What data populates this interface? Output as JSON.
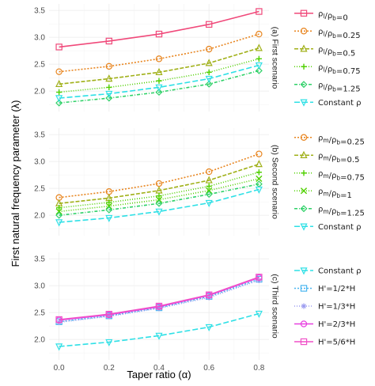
{
  "chart_data": {
    "type": "line",
    "xlabel": "Taper ratio (α)",
    "ylabel": "First natural frequency parameter (λ)",
    "x": [
      0.0,
      0.2,
      0.4,
      0.6,
      0.8
    ],
    "x_ticks": [
      "0.0",
      "0.2",
      "0.4",
      "0.6",
      "0.8"
    ],
    "xlim": [
      -0.04,
      0.84
    ],
    "ylim": [
      1.62,
      3.62
    ],
    "y_ticks": [
      "2.0",
      "2.5",
      "3.0",
      "3.5"
    ],
    "y_tick_values": [
      2.0,
      2.5,
      3.0,
      3.5
    ],
    "grid": true,
    "legend_position": "right",
    "colors": {
      "pink": "#f0497a",
      "orange": "#e8851f",
      "olive": "#a0b018",
      "green": "#50d000",
      "ltgreen": "#2fd168",
      "cyan": "#2fe0e6",
      "blue": "#4ab6f0",
      "lavender": "#9a9af0",
      "magenta": "#e740e0",
      "hotpink": "#f050c8"
    },
    "panels": [
      {
        "strip": "(a) First scenario",
        "series": [
          {
            "name": "ρ_l/ρ_b=0",
            "label_main": "ρ",
            "label_sub1": "l",
            "label_mid": "/ρ",
            "label_sub2": "b",
            "label_end": "=0",
            "values": [
              2.82,
              2.93,
              3.06,
              3.24,
              3.48
            ],
            "color": "pink",
            "dash": "",
            "marker": "square"
          },
          {
            "name": "ρ_l/ρ_b=0.25",
            "label_main": "ρ",
            "label_sub1": "l",
            "label_mid": "/ρ",
            "label_sub2": "b",
            "label_end": "=0.25",
            "values": [
              2.36,
              2.46,
              2.6,
              2.78,
              3.06
            ],
            "color": "orange",
            "dash": "2,2",
            "marker": "circle"
          },
          {
            "name": "ρ_l/ρ_b=0.5",
            "label_main": "ρ",
            "label_sub1": "l",
            "label_mid": "/ρ",
            "label_sub2": "b",
            "label_end": "=0.5",
            "values": [
              2.13,
              2.23,
              2.35,
              2.52,
              2.8
            ],
            "color": "olive",
            "dash": "5,2",
            "marker": "triangle"
          },
          {
            "name": "ρ_l/ρ_b=0.75",
            "label_main": "ρ",
            "label_sub1": "l",
            "label_mid": "/ρ",
            "label_sub2": "b",
            "label_end": "=0.75",
            "values": [
              1.98,
              2.07,
              2.19,
              2.35,
              2.6
            ],
            "color": "green",
            "dash": "1,2",
            "marker": "plus"
          },
          {
            "name": "ρ_l/ρ_b=1.25",
            "label_main": "ρ",
            "label_sub1": "l",
            "label_mid": "/ρ",
            "label_sub2": "b",
            "label_end": "=1.25",
            "values": [
              1.78,
              1.87,
              1.98,
              2.13,
              2.38
            ],
            "color": "ltgreen",
            "dash": "4,2,1,2",
            "marker": "diamond"
          },
          {
            "name": "Constant ρ",
            "label_main": "Constant ρ",
            "label_sub1": "",
            "label_mid": "",
            "label_sub2": "",
            "label_end": "",
            "values": [
              1.87,
              1.95,
              2.07,
              2.23,
              2.48
            ],
            "color": "cyan",
            "dash": "7,3",
            "marker": "invtriangle"
          }
        ]
      },
      {
        "strip": "(b) Second scenario",
        "series": [
          {
            "name": "ρ_m/ρ_b=0.25",
            "label_main": "ρ",
            "label_sub1": "m",
            "label_mid": "/ρ",
            "label_sub2": "b",
            "label_end": "=0.25",
            "values": [
              2.33,
              2.44,
              2.59,
              2.81,
              3.14
            ],
            "color": "orange",
            "dash": "2,2",
            "marker": "circle"
          },
          {
            "name": "ρ_m/ρ_b=0.5",
            "label_main": "ρ",
            "label_sub1": "m",
            "label_mid": "/ρ",
            "label_sub2": "b",
            "label_end": "=0.5",
            "values": [
              2.22,
              2.32,
              2.46,
              2.65,
              2.95
            ],
            "color": "olive",
            "dash": "5,2",
            "marker": "triangle"
          },
          {
            "name": "ρ_m/ρ_b=0.75",
            "label_main": "ρ",
            "label_sub1": "m",
            "label_mid": "/ρ",
            "label_sub2": "b",
            "label_end": "=0.75",
            "values": [
              2.14,
              2.24,
              2.36,
              2.54,
              2.8
            ],
            "color": "green",
            "dash": "1,2",
            "marker": "plus"
          },
          {
            "name": "ρ_m/ρ_b=1",
            "label_main": "ρ",
            "label_sub1": "m",
            "label_mid": "/ρ",
            "label_sub2": "b",
            "label_end": "=1",
            "values": [
              2.07,
              2.17,
              2.29,
              2.46,
              2.68
            ],
            "color": "green",
            "dash": "1,2",
            "marker": "cross"
          },
          {
            "name": "ρ_m/ρ_b=1.25",
            "label_main": "ρ",
            "label_sub1": "m",
            "label_mid": "/ρ",
            "label_sub2": "b",
            "label_end": "=1.25",
            "values": [
              2.0,
              2.1,
              2.22,
              2.39,
              2.58
            ],
            "color": "ltgreen",
            "dash": "4,2,1,2",
            "marker": "diamond"
          },
          {
            "name": "Constant ρ",
            "label_main": "Constant ρ",
            "label_sub1": "",
            "label_mid": "",
            "label_sub2": "",
            "label_end": "",
            "values": [
              1.87,
              1.95,
              2.07,
              2.23,
              2.48
            ],
            "color": "cyan",
            "dash": "7,3",
            "marker": "invtriangle"
          }
        ]
      },
      {
        "strip": "(c) Third scenario",
        "series": [
          {
            "name": "Constant ρ",
            "label_main": "Constant ρ",
            "label_sub1": "",
            "label_mid": "",
            "label_sub2": "",
            "label_end": "",
            "values": [
              1.87,
              1.95,
              2.07,
              2.23,
              2.48
            ],
            "color": "cyan",
            "dash": "7,3",
            "marker": "invtriangle"
          },
          {
            "name": "H'=1/2*H",
            "label_main": "H'=1/2*H",
            "label_sub1": "",
            "label_mid": "",
            "label_sub2": "",
            "label_end": "",
            "values": [
              2.33,
              2.44,
              2.59,
              2.8,
              3.12
            ],
            "color": "blue",
            "dash": "2,2",
            "marker": "square"
          },
          {
            "name": "H'=1/3*H",
            "label_main": "H'=1/3*H",
            "label_sub1": "",
            "label_mid": "",
            "label_sub2": "",
            "label_end": "",
            "values": [
              2.32,
              2.43,
              2.58,
              2.78,
              3.1
            ],
            "color": "lavender",
            "dash": "1,2",
            "marker": "asterisk"
          },
          {
            "name": "H'=2/3*H",
            "label_main": "H'=2/3*H",
            "label_sub1": "",
            "label_mid": "",
            "label_sub2": "",
            "label_end": "",
            "values": [
              2.36,
              2.46,
              2.61,
              2.82,
              3.15
            ],
            "color": "magenta",
            "dash": "",
            "marker": "circle"
          },
          {
            "name": "H'=5/6*H",
            "label_main": "H'=5/6*H",
            "label_sub1": "",
            "label_mid": "",
            "label_sub2": "",
            "label_end": "",
            "values": [
              2.37,
              2.47,
              2.62,
              2.83,
              3.16
            ],
            "color": "hotpink",
            "dash": "",
            "marker": "square"
          }
        ]
      }
    ]
  }
}
